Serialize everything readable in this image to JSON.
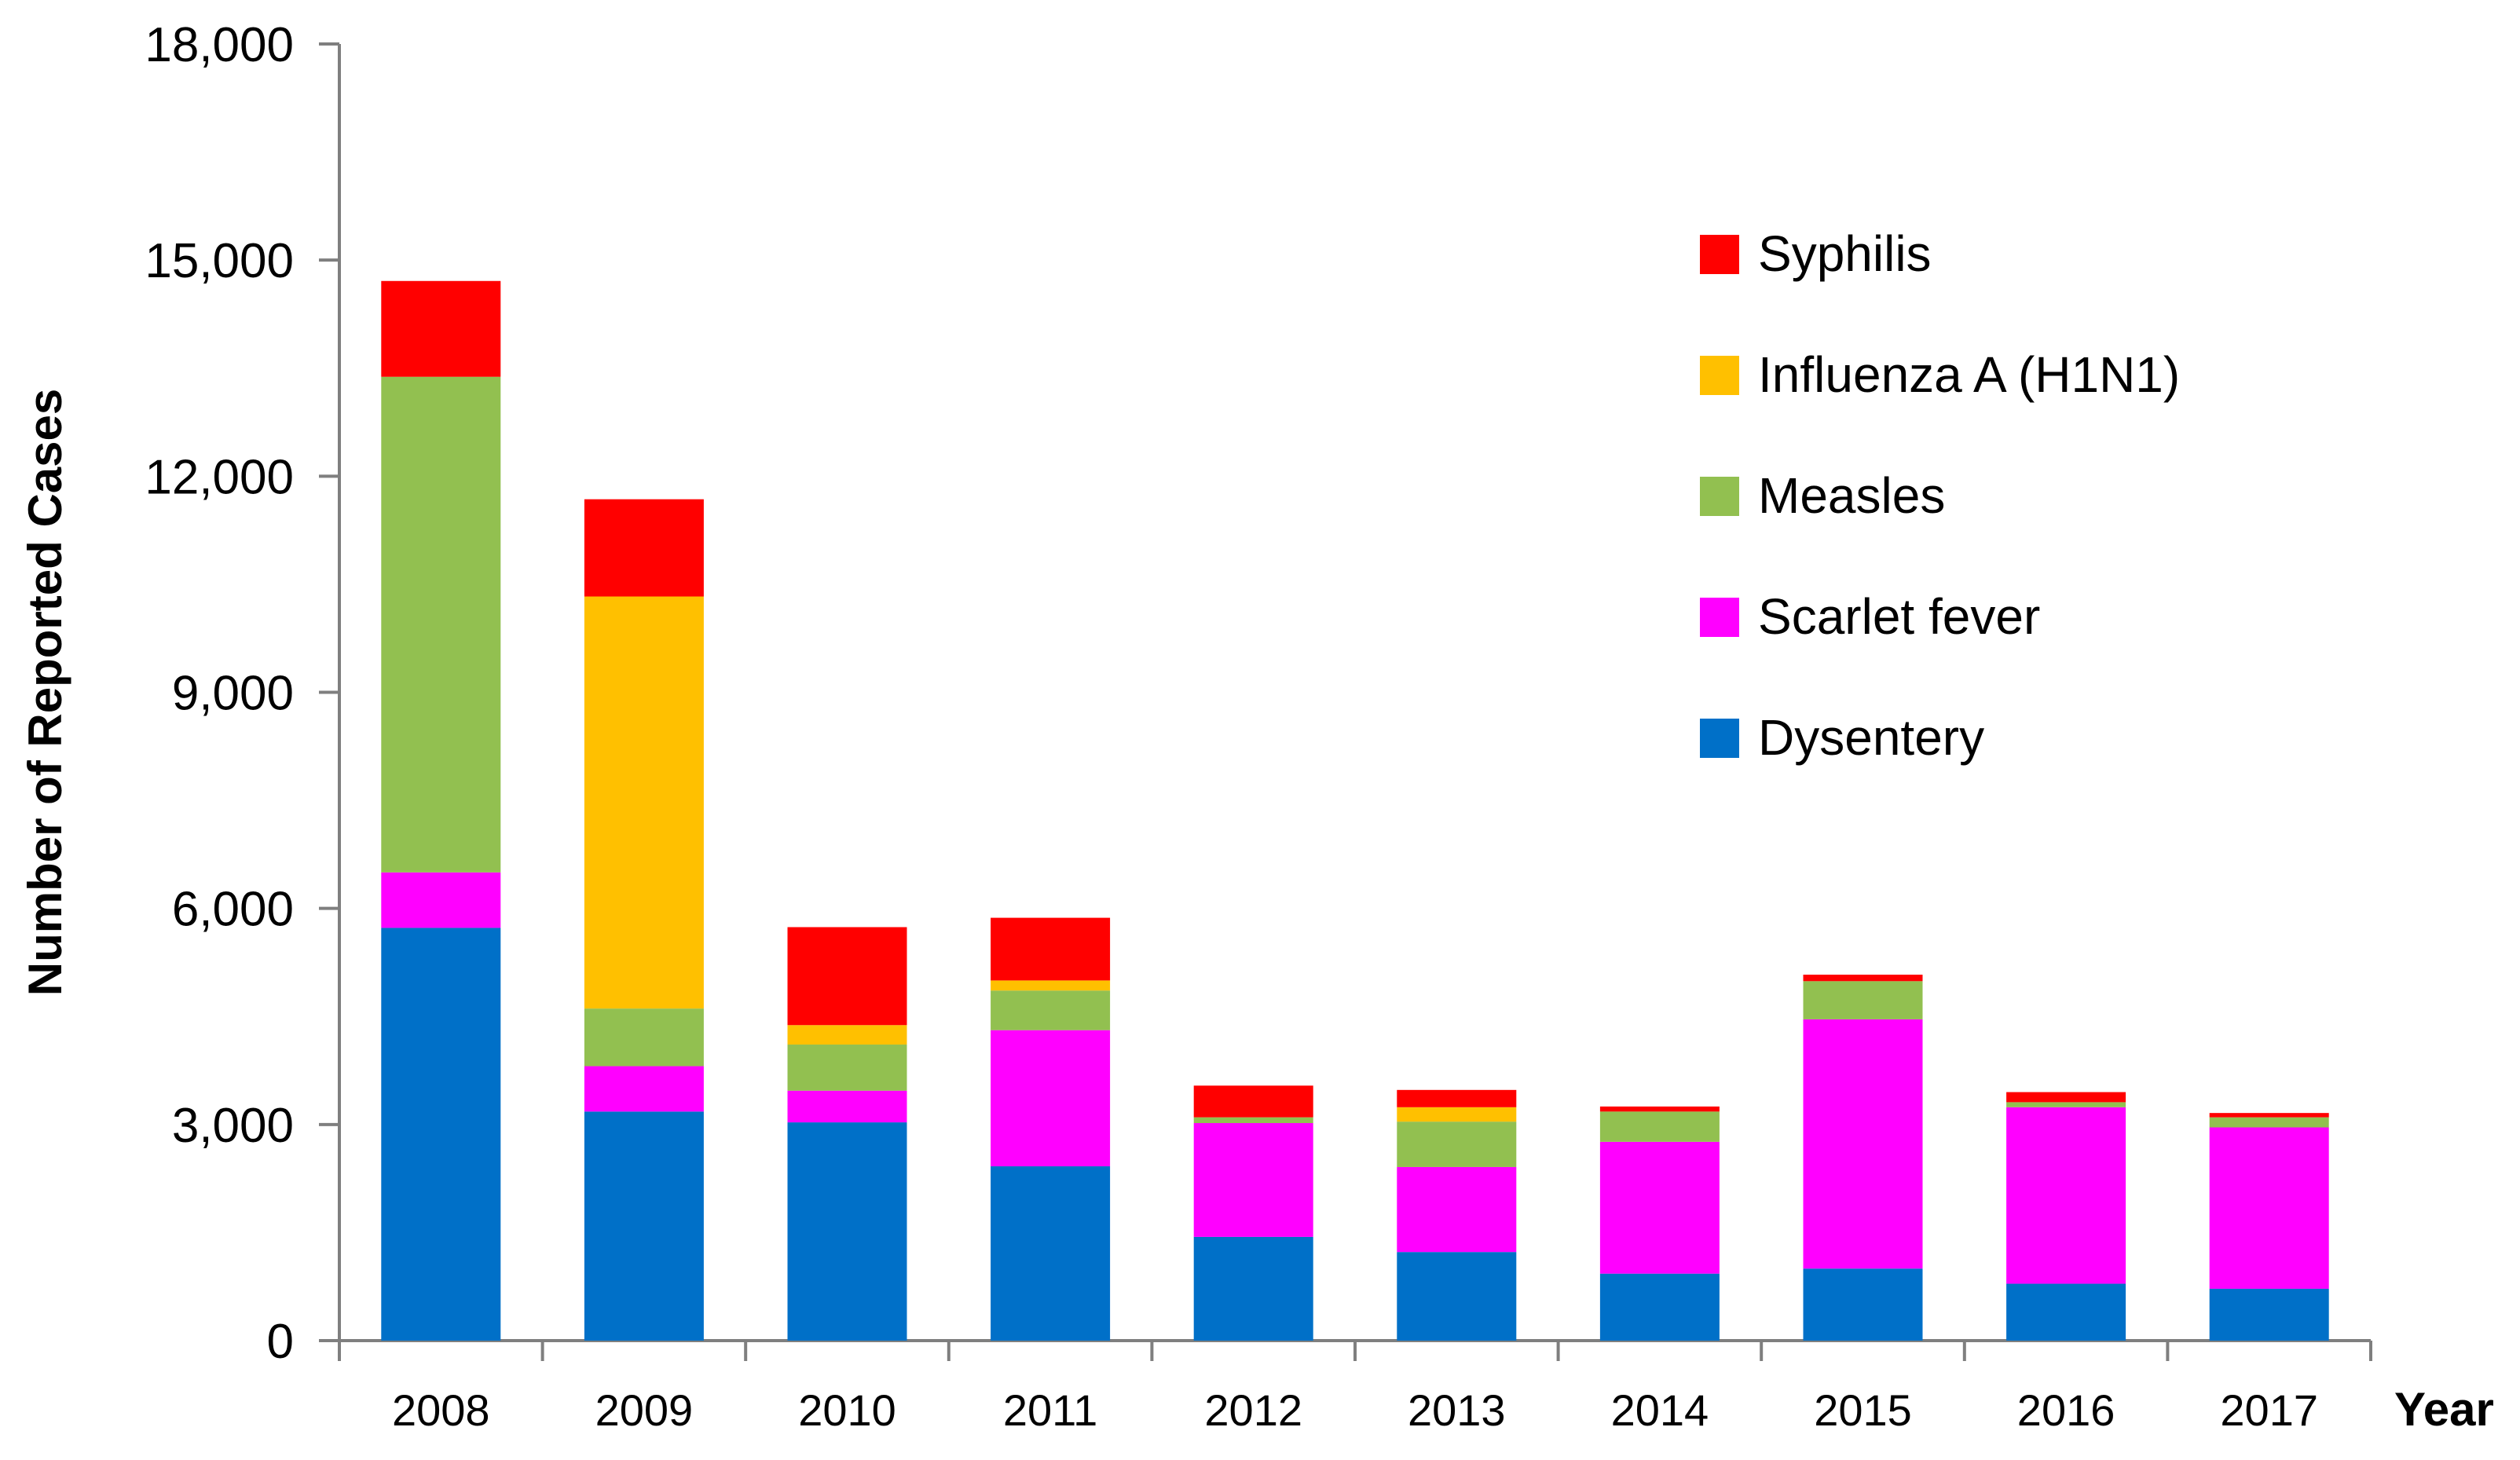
{
  "chart_data": {
    "type": "bar",
    "stacked": true,
    "title": "",
    "xlabel": "Year",
    "ylabel": "Number of Reported Cases",
    "ylim": [
      0,
      18000
    ],
    "yticks": [
      0,
      3000,
      6000,
      9000,
      12000,
      15000,
      18000
    ],
    "ytick_labels": [
      "0",
      "3,000",
      "6,000",
      "9,000",
      "12,000",
      "15,000",
      "18,000"
    ],
    "categories": [
      "2008",
      "2009",
      "2010",
      "2011",
      "2012",
      "2013",
      "2014",
      "2015",
      "2016",
      "2017"
    ],
    "grid": false,
    "legend_position": "top-right",
    "series": [
      {
        "name": "Dysentery",
        "color": "#0070C8",
        "values": [
          5730,
          3180,
          3030,
          2420,
          1440,
          1230,
          930,
          1000,
          790,
          720
        ]
      },
      {
        "name": "Scarlet fever",
        "color": "#FF00FF",
        "values": [
          770,
          630,
          440,
          1890,
          1580,
          1180,
          1830,
          3460,
          2450,
          2240
        ]
      },
      {
        "name": "Measles",
        "color": "#92C050",
        "values": [
          6880,
          800,
          640,
          550,
          80,
          630,
          420,
          530,
          70,
          140
        ]
      },
      {
        "name": "Influenza A (H1N1)",
        "color": "#FFC000",
        "values": [
          0,
          5720,
          270,
          140,
          0,
          200,
          0,
          0,
          0,
          0
        ]
      },
      {
        "name": "Syphilis",
        "color": "#FF0000",
        "values": [
          1330,
          1350,
          1360,
          870,
          440,
          240,
          70,
          90,
          140,
          60
        ]
      }
    ],
    "legend_order": [
      "Syphilis",
      "Influenza A (H1N1)",
      "Measles",
      "Scarlet fever",
      "Dysentery"
    ]
  }
}
